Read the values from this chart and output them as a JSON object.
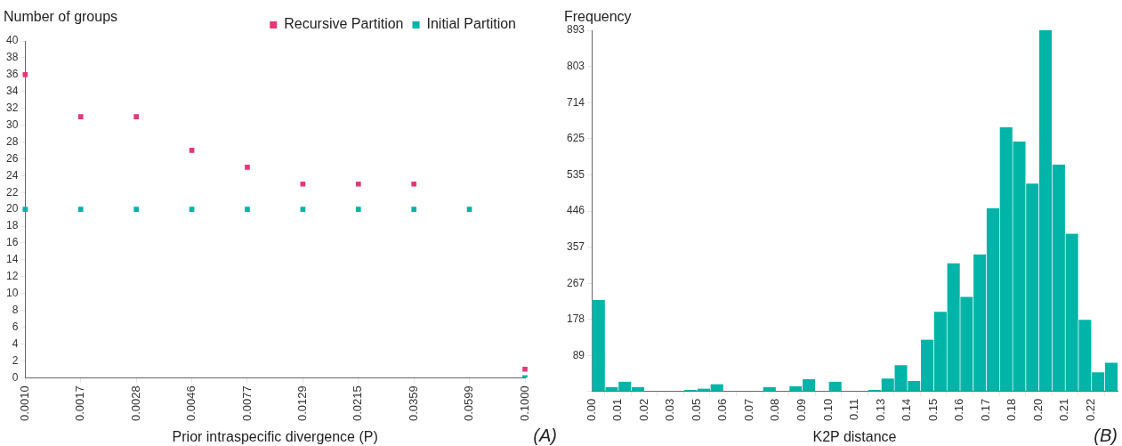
{
  "chart_data": [
    {
      "type": "scatter",
      "xlabel": "Prior intraspecific divergence (P)",
      "ylabel": "Number of groups",
      "categories": [
        "0.0010",
        "0.0017",
        "0.0028",
        "0.0046",
        "0.0077",
        "0.0129",
        "0.0215",
        "0.0359",
        "0.0599",
        "0.1000"
      ],
      "series": [
        {
          "name": "Recursive Partition",
          "color": "#e8367a",
          "values": [
            36,
            31,
            31,
            27,
            25,
            23,
            23,
            23,
            null,
            1
          ]
        },
        {
          "name": "Initial Partition",
          "color": "#00b5a8",
          "values": [
            20,
            20,
            20,
            20,
            20,
            20,
            20,
            20,
            20,
            0
          ]
        }
      ],
      "ylim": [
        0,
        40
      ],
      "yticks": [
        0,
        2,
        4,
        6,
        8,
        10,
        12,
        14,
        16,
        18,
        20,
        22,
        24,
        26,
        28,
        30,
        32,
        34,
        36,
        38,
        40
      ],
      "marker": "square",
      "legend": "top right",
      "grid": false,
      "annotations": [
        "(A)"
      ]
    },
    {
      "type": "histogram",
      "xlabel": "K2P distance",
      "ylabel": "Frequency",
      "color": "#00b5a8",
      "bins": [
        0,
        0.00575,
        0.0115,
        0.01725,
        0.023,
        0.02875,
        0.0345,
        0.04025,
        0.046,
        0.05175,
        0.0575,
        0.06325,
        0.069,
        0.07475,
        0.0805,
        0.08625,
        0.092,
        0.09775,
        0.1035,
        0.10925,
        0.115,
        0.12075,
        0.1265,
        0.13225,
        0.138,
        0.14375,
        0.1495,
        0.15525,
        0.161,
        0.16675,
        0.1725,
        0.17825,
        0.184,
        0.18975,
        0.1955,
        0.20125,
        0.207,
        0.21275,
        0.2185,
        0.22425,
        0.23
      ],
      "values": [
        226,
        11,
        24,
        11,
        0,
        0,
        0,
        4,
        7,
        18,
        0,
        0,
        0,
        11,
        0,
        13,
        30,
        0,
        24,
        0,
        0,
        4,
        32,
        65,
        26,
        128,
        197,
        317,
        234,
        339,
        453,
        653,
        618,
        514,
        893,
        561,
        390,
        177,
        47,
        71
      ],
      "xlim": [
        0,
        0.23
      ],
      "xticks": [
        {
          "value": 0,
          "label": "0.00"
        },
        {
          "value": 0.0115,
          "label": "0.01"
        },
        {
          "value": 0.023,
          "label": "0.02"
        },
        {
          "value": 0.0345,
          "label": "0.03"
        },
        {
          "value": 0.046,
          "label": "0.05"
        },
        {
          "value": 0.0575,
          "label": "0.06"
        },
        {
          "value": 0.069,
          "label": "0.07"
        },
        {
          "value": 0.0805,
          "label": "0.08"
        },
        {
          "value": 0.092,
          "label": "0.09"
        },
        {
          "value": 0.1035,
          "label": "0.10"
        },
        {
          "value": 0.115,
          "label": "0.11"
        },
        {
          "value": 0.1265,
          "label": "0.13"
        },
        {
          "value": 0.138,
          "label": "0.14"
        },
        {
          "value": 0.1495,
          "label": "0.15"
        },
        {
          "value": 0.161,
          "label": "0.16"
        },
        {
          "value": 0.1725,
          "label": "0.17"
        },
        {
          "value": 0.184,
          "label": "0.18"
        },
        {
          "value": 0.1955,
          "label": "0.20"
        },
        {
          "value": 0.207,
          "label": "0.21"
        },
        {
          "value": 0.2185,
          "label": "0.22"
        }
      ],
      "ylim": [
        0,
        893
      ],
      "yticks": [
        {
          "value": 0,
          "label": null
        },
        89,
        178,
        267,
        357,
        446,
        535,
        625,
        714,
        803,
        893
      ],
      "grid": false,
      "annotations": [
        "(B)"
      ]
    }
  ]
}
